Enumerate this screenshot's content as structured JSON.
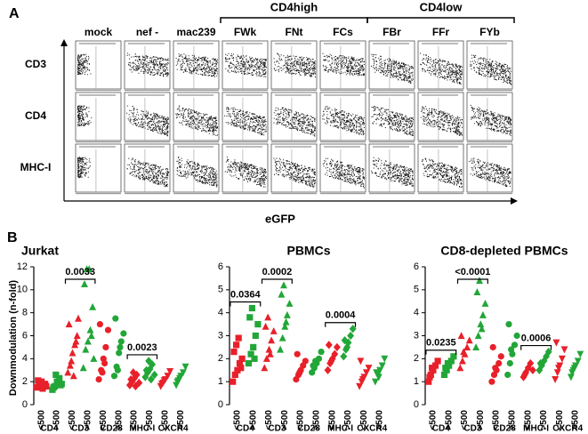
{
  "panel_a": {
    "label": "A",
    "groups": [
      {
        "label": "CD4high",
        "color": "#2a9d3a"
      },
      {
        "label": "CD4low",
        "color": "#e8202a"
      }
    ],
    "columns": [
      {
        "label": "mock",
        "color": "#000000"
      },
      {
        "label": "nef -",
        "color": "#000000"
      },
      {
        "label": "mac239",
        "color": "#000000"
      },
      {
        "label": "FWk",
        "color": "#2a9d3a"
      },
      {
        "label": "FNt",
        "color": "#2a9d3a"
      },
      {
        "label": "FCs",
        "color": "#2a9d3a"
      },
      {
        "label": "FBr",
        "color": "#e8202a"
      },
      {
        "label": "FFr",
        "color": "#e8202a"
      },
      {
        "label": "FYb",
        "color": "#e8202a"
      }
    ],
    "rows": [
      "CD3",
      "CD4",
      "MHC-I"
    ],
    "x_label": "eGFP"
  },
  "panel_b": {
    "label": "B",
    "y_label": "Downmodulation (n-fold)"
  },
  "chart_data": [
    {
      "type": "strip",
      "title": "Jurkat",
      "ylim": [
        0,
        12
      ],
      "yticks": [
        0,
        2,
        4,
        6,
        8,
        10,
        12
      ],
      "groups": [
        {
          "label": "CD4",
          "marker": "square",
          "subgroups": [
            {
              "label": "<500",
              "color": "#e8202a",
              "values": [
                1.5,
                1.8,
                2.0,
                1.7,
                1.6,
                2.1,
                1.9,
                1.4,
                1.8
              ]
            },
            {
              "label": ">500",
              "color": "#22a638",
              "values": [
                1.3,
                1.6,
                2.0,
                2.3,
                1.8,
                1.5,
                2.6,
                1.9,
                1.7
              ]
            }
          ]
        },
        {
          "label": "CD3",
          "marker": "triangle",
          "p_value": "0.0033",
          "subgroups": [
            {
              "label": "<500",
              "color": "#e8202a",
              "values": [
                2.8,
                3.4,
                4.5,
                5.2,
                6.0,
                7.0,
                3.8,
                2.5,
                5.5,
                7.5
              ]
            },
            {
              "label": ">500",
              "color": "#22a638",
              "values": [
                3.2,
                4.8,
                5.5,
                6.5,
                8.5,
                10.5,
                11.8,
                11.8,
                6.0,
                4.0
              ]
            }
          ]
        },
        {
          "label": "CD28",
          "marker": "circle",
          "subgroups": [
            {
              "label": "<500",
              "color": "#e8202a",
              "values": [
                2.2,
                3.0,
                4.0,
                5.0,
                6.5,
                7.0,
                2.8,
                3.6
              ]
            },
            {
              "label": ">500",
              "color": "#22a638",
              "values": [
                2.5,
                3.3,
                4.5,
                5.5,
                6.2,
                7.5,
                3.0,
                5.0
              ]
            }
          ]
        },
        {
          "label": "MHC-I",
          "marker": "diamond",
          "p_value": "0.0023",
          "subgroups": [
            {
              "label": "<500",
              "color": "#e8202a",
              "values": [
                1.7,
                2.0,
                2.3,
                2.6,
                1.9,
                2.2,
                2.8,
                1.6
              ]
            },
            {
              "label": ">500",
              "color": "#22a638",
              "values": [
                2.4,
                2.8,
                3.1,
                3.5,
                2.6,
                3.0,
                3.8,
                2.2
              ]
            }
          ]
        },
        {
          "label": "CXCR4",
          "marker": "triangle-down",
          "subgroups": [
            {
              "label": "<500",
              "color": "#e8202a",
              "values": [
                1.6,
                1.9,
                2.2,
                2.5,
                2.9,
                1.8,
                2.1
              ]
            },
            {
              "label": ">500",
              "color": "#22a638",
              "values": [
                1.7,
                2.1,
                2.5,
                2.8,
                3.3,
                2.0,
                2.3
              ]
            }
          ]
        }
      ]
    },
    {
      "type": "strip",
      "title": "PBMCs",
      "ylim": [
        0,
        6
      ],
      "yticks": [
        0,
        1,
        2,
        3,
        4,
        5,
        6
      ],
      "groups": [
        {
          "label": "CD4",
          "marker": "square",
          "p_value": "0.0364",
          "subgroups": [
            {
              "label": "<500",
              "color": "#e8202a",
              "values": [
                1.0,
                1.3,
                1.5,
                1.8,
                2.0,
                2.3,
                2.6,
                2.9,
                1.6
              ]
            },
            {
              "label": ">500",
              "color": "#22a638",
              "values": [
                1.8,
                2.2,
                2.5,
                3.0,
                3.5,
                3.8,
                4.2,
                2.0
              ]
            }
          ]
        },
        {
          "label": "CD3",
          "marker": "triangle",
          "p_value": "0.0002",
          "subgroups": [
            {
              "label": "<500",
              "color": "#e8202a",
              "values": [
                1.6,
                2.0,
                2.4,
                2.8,
                3.2,
                3.4,
                3.8,
                2.2
              ]
            },
            {
              "label": ">500",
              "color": "#22a638",
              "values": [
                2.4,
                2.9,
                3.4,
                3.9,
                4.4,
                4.8,
                5.2,
                3.6
              ]
            }
          ]
        },
        {
          "label": "CD28",
          "marker": "circle",
          "subgroups": [
            {
              "label": "<500",
              "color": "#e8202a",
              "values": [
                1.1,
                1.3,
                1.5,
                1.7,
                1.9,
                2.2,
                1.4
              ]
            },
            {
              "label": ">500",
              "color": "#22a638",
              "values": [
                1.4,
                1.6,
                1.8,
                2.0,
                2.3,
                1.7,
                1.9
              ]
            }
          ]
        },
        {
          "label": "MHC-I",
          "marker": "diamond",
          "p_value": "0.0004",
          "subgroups": [
            {
              "label": "<500",
              "color": "#e8202a",
              "values": [
                1.5,
                1.8,
                2.0,
                2.2,
                2.5,
                2.6,
                1.9
              ]
            },
            {
              "label": ">500",
              "color": "#22a638",
              "values": [
                2.1,
                2.4,
                2.7,
                3.0,
                3.3,
                2.8,
                2.5
              ]
            }
          ]
        },
        {
          "label": "CXCR4",
          "marker": "triangle-down",
          "subgroups": [
            {
              "label": "<500",
              "color": "#e8202a",
              "values": [
                0.8,
                1.0,
                1.2,
                1.4,
                1.6,
                1.9,
                1.1
              ]
            },
            {
              "label": ">500",
              "color": "#22a638",
              "values": [
                1.0,
                1.3,
                1.5,
                1.7,
                2.0,
                1.4,
                1.2
              ]
            }
          ]
        }
      ]
    },
    {
      "type": "strip",
      "title": "CD8-depleted PBMCs",
      "ylim": [
        0,
        6
      ],
      "yticks": [
        0,
        1,
        2,
        3,
        4,
        5,
        6
      ],
      "groups": [
        {
          "label": "CD4",
          "marker": "square",
          "p_value": "0.0235",
          "subgroups": [
            {
              "label": "<500",
              "color": "#e8202a",
              "values": [
                1.0,
                1.3,
                1.5,
                1.7,
                1.9,
                1.2,
                1.6
              ]
            },
            {
              "label": ">500",
              "color": "#22a638",
              "values": [
                1.3,
                1.5,
                1.7,
                1.9,
                2.1,
                1.6,
                1.8
              ]
            }
          ]
        },
        {
          "label": "CD3",
          "marker": "triangle",
          "p_value": "<0.0001",
          "subgroups": [
            {
              "label": "<500",
              "color": "#e8202a",
              "values": [
                1.6,
                1.9,
                2.2,
                2.5,
                2.8,
                3.0,
                2.3
              ]
            },
            {
              "label": ">500",
              "color": "#22a638",
              "values": [
                2.5,
                3.0,
                3.5,
                3.9,
                4.4,
                4.9,
                5.4,
                3.3
              ]
            }
          ]
        },
        {
          "label": "CD28",
          "marker": "circle",
          "subgroups": [
            {
              "label": "<500",
              "color": "#e8202a",
              "values": [
                1.0,
                1.3,
                1.5,
                1.8,
                2.1,
                2.5,
                1.6
              ]
            },
            {
              "label": ">500",
              "color": "#22a638",
              "values": [
                1.3,
                1.8,
                2.2,
                2.6,
                3.0,
                3.5,
                2.4
              ]
            }
          ]
        },
        {
          "label": "MHC-I",
          "marker": "diamond",
          "p_value": "0.0006",
          "subgroups": [
            {
              "label": "<500",
              "color": "#e8202a",
              "values": [
                1.2,
                1.4,
                1.6,
                1.8,
                1.5,
                1.3
              ]
            },
            {
              "label": ">500",
              "color": "#22a638",
              "values": [
                1.5,
                1.7,
                1.9,
                2.1,
                2.3,
                1.8
              ]
            }
          ]
        },
        {
          "label": "CXCR4",
          "marker": "triangle-down",
          "subgroups": [
            {
              "label": "<500",
              "color": "#e8202a",
              "values": [
                1.1,
                1.4,
                1.7,
                2.0,
                2.4,
                2.7,
                1.6
              ]
            },
            {
              "label": ">500",
              "color": "#22a638",
              "values": [
                1.2,
                1.5,
                1.7,
                1.9,
                2.2,
                1.4,
                1.6
              ]
            }
          ]
        }
      ]
    }
  ]
}
